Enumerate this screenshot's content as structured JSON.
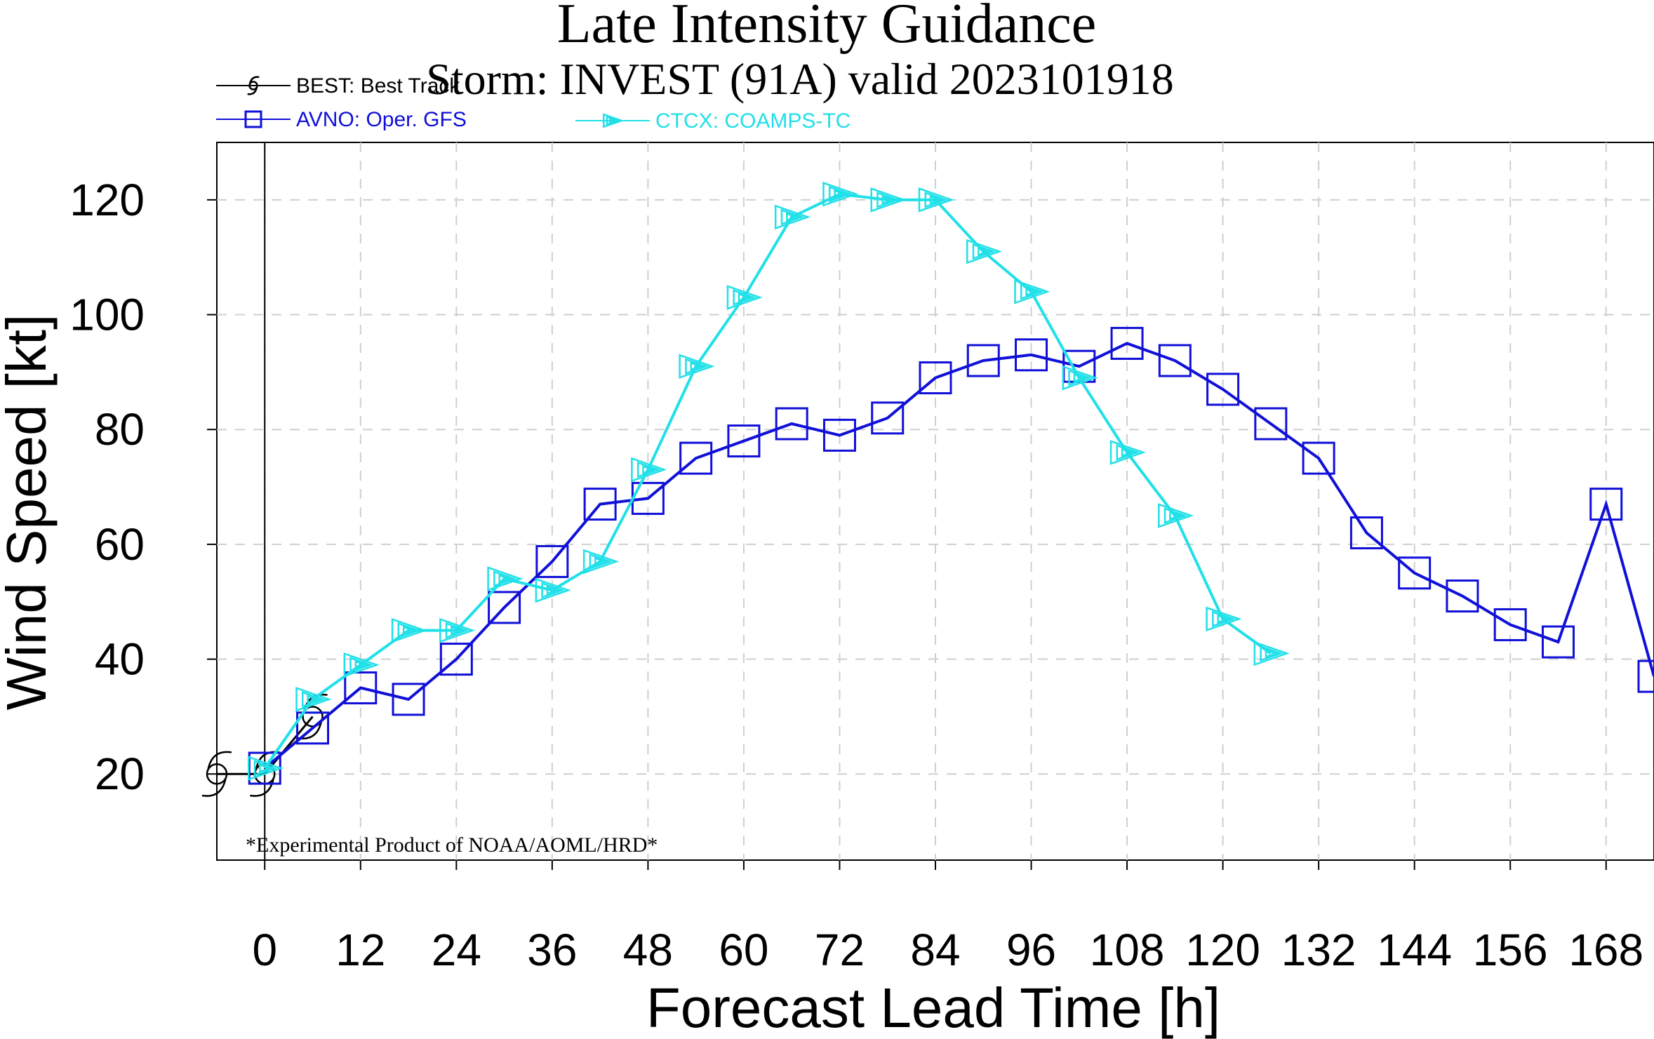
{
  "chart_data": {
    "type": "line",
    "title": "Late Intensity Guidance",
    "subtitle": "Storm: INVEST (91A) valid 2023101918",
    "xlabel": "Forecast Lead Time [h]",
    "ylabel": "Wind Speed [kt]",
    "xlim": [
      -6,
      174
    ],
    "ylim": [
      5,
      130
    ],
    "xticks": [
      0,
      12,
      24,
      36,
      48,
      60,
      72,
      84,
      96,
      108,
      120,
      132,
      144,
      156,
      168
    ],
    "yticks": [
      20,
      40,
      60,
      80,
      100,
      120
    ],
    "grid": true,
    "legend_position": "top-left",
    "footnote": "*Experimental Product of NOAA/AOML/HRD*",
    "series": [
      {
        "name": "BEST: Best Track",
        "color": "#000000",
        "marker": "hurricane-icon",
        "x": [
          -6,
          0,
          6
        ],
        "y": [
          20,
          20,
          30
        ]
      },
      {
        "name": "AVNO: Oper. GFS",
        "color": "#1010d8",
        "marker": "square",
        "x": [
          0,
          6,
          12,
          18,
          24,
          30,
          36,
          42,
          48,
          54,
          60,
          66,
          72,
          78,
          84,
          90,
          96,
          102,
          108,
          114,
          120,
          126,
          132,
          138,
          144,
          150,
          156,
          162,
          168,
          174
        ],
        "y": [
          21,
          28,
          35,
          33,
          40,
          49,
          57,
          67,
          68,
          75,
          78,
          81,
          79,
          82,
          89,
          92,
          93,
          91,
          95,
          92,
          87,
          81,
          75,
          62,
          55,
          51,
          46,
          43,
          67,
          37
        ]
      },
      {
        "name": "CTCX: COAMPS-TC",
        "color": "#20e0e8",
        "marker": "triangle",
        "x": [
          0,
          6,
          12,
          18,
          24,
          30,
          36,
          42,
          48,
          54,
          60,
          66,
          72,
          78,
          84,
          90,
          96,
          102,
          108,
          114,
          120,
          126
        ],
        "y": [
          21,
          33,
          39,
          45,
          45,
          54,
          52,
          57,
          73,
          91,
          103,
          117,
          121,
          120,
          120,
          111,
          104,
          89,
          76,
          65,
          47,
          41
        ]
      }
    ]
  }
}
